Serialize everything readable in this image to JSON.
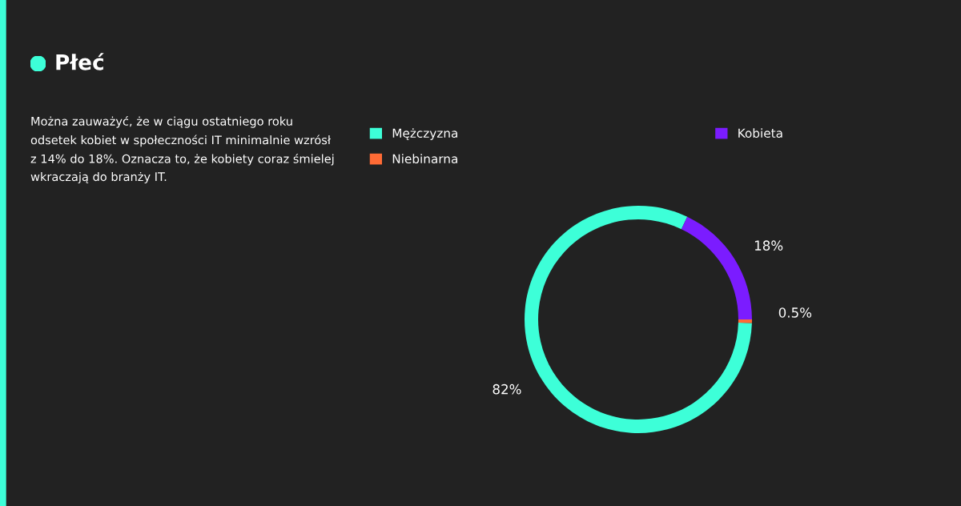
{
  "chart_data": {
    "type": "donut",
    "title": "Płeć",
    "annotations": [
      "Można zauważyć, że w ciągu ostatniego roku\nodsetek kobiet w społeczności IT minimalnie wzrósł\nz 14% do 18%. Oznacza to, że kobiety coraz śmielej\nwkraczają do branży IT."
    ],
    "categories": [
      "Mężczyzna",
      "Kobieta",
      "Niebinarna"
    ],
    "values": [
      82,
      18,
      0.5
    ],
    "value_labels": [
      "82%",
      "18%",
      "0.5%"
    ],
    "colors": [
      "#3dffd8",
      "#7b1cff",
      "#ff6b35"
    ],
    "legend": "top"
  }
}
